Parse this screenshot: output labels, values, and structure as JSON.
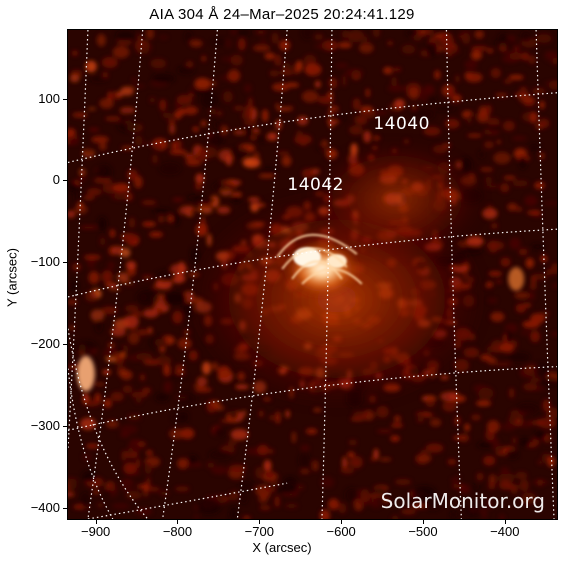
{
  "title": "AIA 304 Å 24–Mar–2025 20:24:41.129",
  "x_axis": {
    "label": "X (arcsec)",
    "ticks": [
      "−900",
      "−800",
      "−700",
      "−600",
      "−500",
      "−400"
    ],
    "tick_values": [
      -900,
      -800,
      -700,
      -600,
      -500,
      -400
    ],
    "range": [
      -935,
      -335
    ]
  },
  "y_axis": {
    "label": "Y (arcsec)",
    "ticks": [
      "100",
      "0",
      "−100",
      "−200",
      "−300",
      "−400"
    ],
    "tick_values": [
      100,
      0,
      -100,
      -200,
      -300,
      -400
    ],
    "range": [
      -415,
      185
    ]
  },
  "active_regions": [
    {
      "label": "14040",
      "x": -535,
      "y": 70
    },
    {
      "label": "14042",
      "x": -640,
      "y": -5
    }
  ],
  "watermark": "SolarMonitor.org",
  "colors": {
    "dark": "#2a0400",
    "mid": "#8a1a00",
    "bright": "#e06a1a",
    "hot": "#ffd9a8",
    "grid": "#ffffff"
  }
}
